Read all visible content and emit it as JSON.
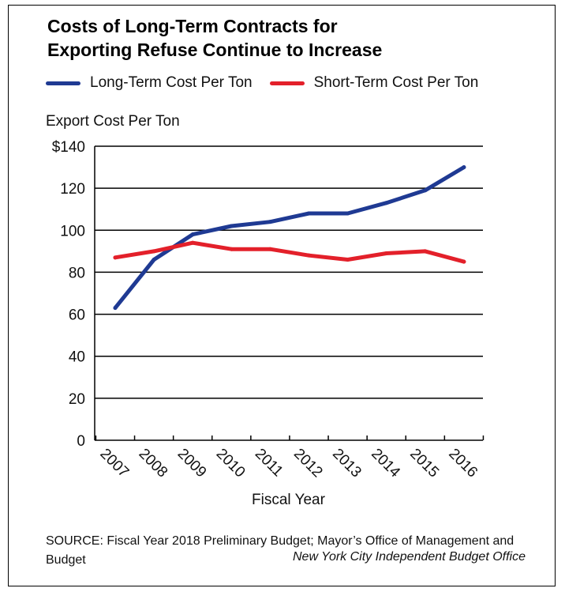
{
  "title_line1": "Costs of Long-Term Contracts for",
  "title_line2": "Exporting Refuse Continue to Increase",
  "source_text": "SOURCE: Fiscal Year 2018 Preliminary Budget; Mayor’s Office of Management and Budget",
  "credit_text": "New York City Independent Budget Office",
  "chart_data": {
    "type": "line",
    "title": "Costs of Long-Term Contracts for Exporting Refuse Continue to Increase",
    "xlabel": "Fiscal Year",
    "ylabel": "Export Cost Per Ton",
    "categories": [
      "2007",
      "2008",
      "2009",
      "2010",
      "2011",
      "2012",
      "2013",
      "2014",
      "2015",
      "2016"
    ],
    "y_ticks": [
      "0",
      "20",
      "40",
      "60",
      "80",
      "100",
      "120",
      "$140"
    ],
    "ylim": [
      0,
      140
    ],
    "grid": true,
    "legend_position": "top",
    "series": [
      {
        "name": "Long-Term Cost Per Ton",
        "color": "#1f3a93",
        "values": [
          63,
          86,
          98,
          102,
          104,
          108,
          108,
          113,
          119,
          130
        ]
      },
      {
        "name": "Short-Term Cost Per Ton",
        "color": "#e3202a",
        "values": [
          87,
          90,
          94,
          91,
          91,
          88,
          86,
          89,
          90,
          85
        ]
      }
    ]
  }
}
